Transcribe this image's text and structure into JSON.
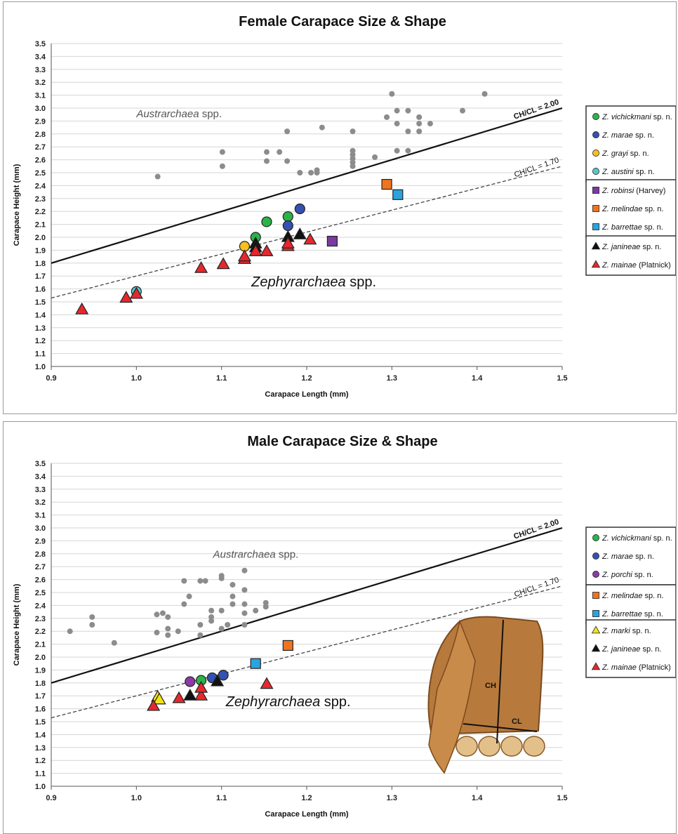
{
  "chart_data": [
    {
      "type": "scatter",
      "title": "Female Carapace Size & Shape",
      "xlabel": "Carapace Length (mm)",
      "ylabel": "Carapace Height (mm)",
      "xlim": [
        0.9,
        1.5
      ],
      "ylim": [
        1.0,
        3.5
      ],
      "xticks": [
        "0.9",
        "1.0",
        "1.1",
        "1.2",
        "1.3",
        "1.4",
        "1.5"
      ],
      "yticks": [
        "1.0",
        "1.1",
        "1.2",
        "1.3",
        "1.4",
        "1.5",
        "1.6",
        "1.7",
        "1.8",
        "1.9",
        "2.0",
        "2.1",
        "2.2",
        "2.3",
        "2.4",
        "2.5",
        "2.6",
        "2.7",
        "2.8",
        "2.9",
        "3.0",
        "3.1",
        "3.2",
        "3.3",
        "3.4",
        "3.5"
      ],
      "grid": true,
      "reference_lines": [
        {
          "label": "CH/CL = 2.00",
          "slope": 2.0,
          "style": "solid"
        },
        {
          "label": "CH/CL = 1.70",
          "slope": 1.7,
          "style": "dashed"
        }
      ],
      "annotations": [
        {
          "text_italic": "Austrarchaea",
          "text": " spp.",
          "x": 1.0,
          "y": 2.93,
          "size": "small"
        },
        {
          "text_italic": "Zephyrarchaea",
          "text": " spp.",
          "x": 1.135,
          "y": 1.62,
          "size": "large"
        }
      ],
      "legend_position": "right",
      "legend_groups": [
        [
          "Z. vichickmani",
          "Z. marae",
          "Z. grayi",
          "Z. austini"
        ],
        [
          "Z. robinsi",
          "Z. melindae",
          "Z. barrettae"
        ],
        [
          "Z. janineae",
          "Z. mainae"
        ]
      ],
      "series": [
        {
          "name": "Austrarchaea spp.",
          "marker": "dot",
          "color": "#8c8c8c",
          "in_legend": false,
          "points": [
            [
              1.025,
              2.47
            ],
            [
              1.101,
              2.66
            ],
            [
              1.101,
              2.55
            ],
            [
              1.153,
              2.66
            ],
            [
              1.168,
              2.66
            ],
            [
              1.153,
              2.59
            ],
            [
              1.177,
              2.59
            ],
            [
              1.177,
              2.82
            ],
            [
              1.192,
              2.5
            ],
            [
              1.205,
              2.5
            ],
            [
              1.212,
              2.5
            ],
            [
              1.212,
              2.52
            ],
            [
              1.218,
              2.85
            ],
            [
              1.254,
              2.82
            ],
            [
              1.254,
              2.67
            ],
            [
              1.254,
              2.64
            ],
            [
              1.254,
              2.61
            ],
            [
              1.254,
              2.58
            ],
            [
              1.254,
              2.55
            ],
            [
              1.28,
              2.62
            ],
            [
              1.294,
              2.93
            ],
            [
              1.3,
              3.11
            ],
            [
              1.306,
              2.98
            ],
            [
              1.306,
              2.88
            ],
            [
              1.306,
              2.67
            ],
            [
              1.319,
              2.98
            ],
            [
              1.319,
              2.82
            ],
            [
              1.319,
              2.67
            ],
            [
              1.332,
              2.93
            ],
            [
              1.332,
              2.88
            ],
            [
              1.332,
              2.82
            ],
            [
              1.345,
              2.88
            ],
            [
              1.383,
              2.98
            ],
            [
              1.409,
              3.11
            ]
          ]
        },
        {
          "name": "Z. vichickmani",
          "suffix": " sp. n.",
          "marker": "circle",
          "color": "#2bb34a",
          "points": [
            [
              1.14,
              2.0
            ],
            [
              1.153,
              2.12
            ],
            [
              1.178,
              2.16
            ]
          ]
        },
        {
          "name": "Z. marae",
          "suffix": " sp. n.",
          "marker": "circle",
          "color": "#3451b2",
          "points": [
            [
              1.178,
              2.09
            ],
            [
              1.192,
              2.22
            ]
          ]
        },
        {
          "name": "Z. grayi",
          "suffix": " sp. n.",
          "marker": "circle",
          "color": "#f5c020",
          "points": [
            [
              1.127,
              1.93
            ]
          ]
        },
        {
          "name": "Z. austini",
          "suffix": " sp. n.",
          "marker": "circle",
          "color": "#55c7c9",
          "points": [
            [
              1.0,
              1.58
            ]
          ]
        },
        {
          "name": "Z. robinsi",
          "suffix": " (Harvey)",
          "marker": "square",
          "color": "#7a3aa0",
          "points": [
            [
              1.23,
              1.97
            ]
          ]
        },
        {
          "name": "Z. melindae",
          "suffix": " sp. n.",
          "marker": "square",
          "color": "#ef7422",
          "points": [
            [
              1.294,
              2.41
            ]
          ]
        },
        {
          "name": "Z. barrettae",
          "suffix": " sp. n.",
          "marker": "square",
          "color": "#2aa3df",
          "points": [
            [
              1.307,
              2.33
            ]
          ]
        },
        {
          "name": "Z. janineae",
          "suffix": " sp. n.",
          "marker": "triangle",
          "color": "#111111",
          "points": [
            [
              1.14,
              1.95
            ],
            [
              1.14,
              1.92
            ],
            [
              1.178,
              2.0
            ],
            [
              1.192,
              2.02
            ]
          ]
        },
        {
          "name": "Z. mainae",
          "suffix": " (Platnick)",
          "marker": "triangle",
          "color": "#e5282e",
          "points": [
            [
              0.936,
              1.44
            ],
            [
              0.988,
              1.53
            ],
            [
              1.0,
              1.56
            ],
            [
              1.076,
              1.76
            ],
            [
              1.102,
              1.79
            ],
            [
              1.127,
              1.83
            ],
            [
              1.127,
              1.85
            ],
            [
              1.14,
              1.89
            ],
            [
              1.153,
              1.89
            ],
            [
              1.178,
              1.93
            ],
            [
              1.178,
              1.95
            ],
            [
              1.204,
              1.98
            ]
          ]
        }
      ]
    },
    {
      "type": "scatter",
      "title": "Male Carapace Size & Shape",
      "xlabel": "Carapace Length (mm)",
      "ylabel": "Carapace Height (mm)",
      "xlim": [
        0.9,
        1.5
      ],
      "ylim": [
        1.0,
        3.5
      ],
      "xticks": [
        "0.9",
        "1.0",
        "1.1",
        "1.2",
        "1.3",
        "1.4",
        "1.5"
      ],
      "yticks": [
        "1.0",
        "1.1",
        "1.2",
        "1.3",
        "1.4",
        "1.5",
        "1.6",
        "1.7",
        "1.8",
        "1.9",
        "2.0",
        "2.1",
        "2.2",
        "2.3",
        "2.4",
        "2.5",
        "2.6",
        "2.7",
        "2.8",
        "2.9",
        "3.0",
        "3.1",
        "3.2",
        "3.3",
        "3.4",
        "3.5"
      ],
      "grid": true,
      "reference_lines": [
        {
          "label": "CH/CL = 2.00",
          "slope": 2.0,
          "style": "solid"
        },
        {
          "label": "CH/CL = 1.70",
          "slope": 1.7,
          "style": "dashed"
        }
      ],
      "annotations": [
        {
          "text_italic": "Austrarchaea",
          "text": " spp.",
          "x": 1.09,
          "y": 2.77,
          "size": "small"
        },
        {
          "text_italic": "Zephyrarchaea",
          "text": " spp.",
          "x": 1.105,
          "y": 1.62,
          "size": "large"
        }
      ],
      "inset_labels": [
        "CH",
        "CL"
      ],
      "legend_position": "right",
      "legend_groups": [
        [
          "Z. vichickmani",
          "Z. marae",
          "Z. porchi"
        ],
        [
          "Z. melindae",
          "Z. barrettae"
        ],
        [
          "Z. marki",
          "Z. janineae",
          "Z. mainae"
        ]
      ],
      "series": [
        {
          "name": "Austrarchaea spp.",
          "marker": "dot",
          "color": "#8c8c8c",
          "in_legend": false,
          "points": [
            [
              0.922,
              2.2
            ],
            [
              0.948,
              2.31
            ],
            [
              0.948,
              2.25
            ],
            [
              0.974,
              2.11
            ],
            [
              1.024,
              2.33
            ],
            [
              1.024,
              2.19
            ],
            [
              1.031,
              2.34
            ],
            [
              1.037,
              2.31
            ],
            [
              1.037,
              2.22
            ],
            [
              1.037,
              2.17
            ],
            [
              1.049,
              2.2
            ],
            [
              1.056,
              2.59
            ],
            [
              1.056,
              2.41
            ],
            [
              1.062,
              2.47
            ],
            [
              1.075,
              2.59
            ],
            [
              1.075,
              2.25
            ],
            [
              1.075,
              2.17
            ],
            [
              1.081,
              2.59
            ],
            [
              1.088,
              2.36
            ],
            [
              1.088,
              2.31
            ],
            [
              1.088,
              2.28
            ],
            [
              1.1,
              2.63
            ],
            [
              1.1,
              2.61
            ],
            [
              1.1,
              2.36
            ],
            [
              1.1,
              2.22
            ],
            [
              1.107,
              2.25
            ],
            [
              1.113,
              2.56
            ],
            [
              1.113,
              2.47
            ],
            [
              1.113,
              2.41
            ],
            [
              1.127,
              2.67
            ],
            [
              1.127,
              2.52
            ],
            [
              1.127,
              2.41
            ],
            [
              1.127,
              2.34
            ],
            [
              1.127,
              2.25
            ],
            [
              1.14,
              2.36
            ],
            [
              1.152,
              2.42
            ],
            [
              1.152,
              2.39
            ]
          ]
        },
        {
          "name": "Z. vichickmani",
          "suffix": " sp. n.",
          "marker": "circle",
          "color": "#2bb34a",
          "points": [
            [
              1.076,
              1.82
            ]
          ]
        },
        {
          "name": "Z. marae",
          "suffix": " sp. n.",
          "marker": "circle",
          "color": "#3451b2",
          "points": [
            [
              1.089,
              1.84
            ],
            [
              1.102,
              1.86
            ]
          ]
        },
        {
          "name": "Z. porchi",
          "suffix": " sp. n.",
          "marker": "circle",
          "color": "#8c3aa8",
          "points": [
            [
              1.063,
              1.81
            ]
          ]
        },
        {
          "name": "Z. melindae",
          "suffix": " sp. n.",
          "marker": "square",
          "color": "#ef7422",
          "points": [
            [
              1.178,
              2.09
            ]
          ]
        },
        {
          "name": "Z. barrettae",
          "suffix": " sp. n.",
          "marker": "square",
          "color": "#2aa3df",
          "points": [
            [
              1.14,
              1.95
            ]
          ]
        },
        {
          "name": "Z. marki",
          "suffix": " sp. n.",
          "marker": "triangle",
          "color": "#f2e21a",
          "points": [
            [
              1.025,
              1.69
            ],
            [
              1.027,
              1.67
            ]
          ]
        },
        {
          "name": "Z. janineae",
          "suffix": " sp. n.",
          "marker": "triangle",
          "color": "#111111",
          "points": [
            [
              1.063,
              1.7
            ],
            [
              1.095,
              1.81
            ]
          ]
        },
        {
          "name": "Z. mainae",
          "suffix": " (Platnick)",
          "marker": "triangle",
          "color": "#e5282e",
          "points": [
            [
              1.02,
              1.62
            ],
            [
              1.05,
              1.68
            ],
            [
              1.076,
              1.7
            ],
            [
              1.076,
              1.76
            ],
            [
              1.153,
              1.79
            ]
          ]
        }
      ]
    }
  ]
}
